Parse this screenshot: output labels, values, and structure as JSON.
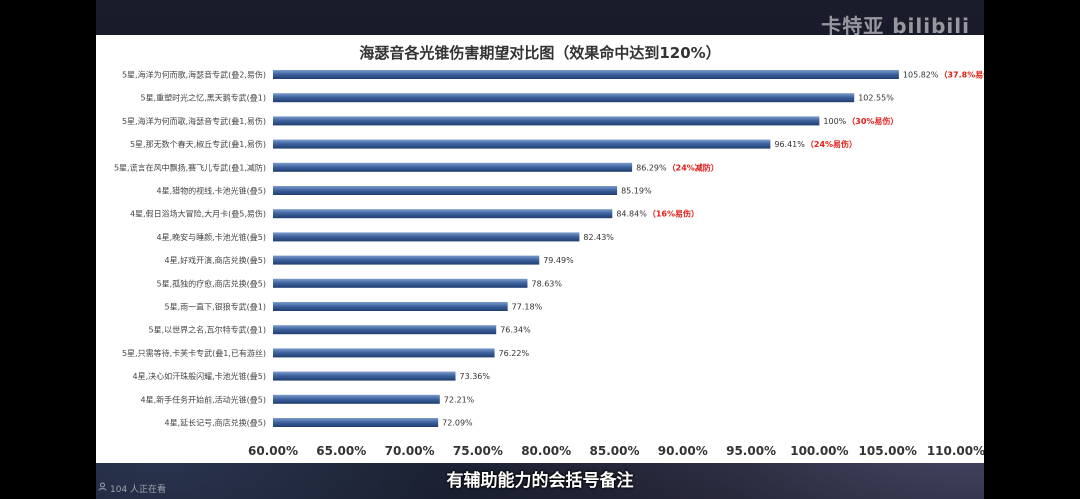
{
  "watermark": "卡特亚 bilibili",
  "subtitle": "有辅助能力的会括号备注",
  "viewers": "104 人正在看",
  "colors": {
    "bar_dark": "#1f3d70",
    "bar_light": "#6a8cc0",
    "note": "#e0201a"
  },
  "chart_data": {
    "type": "bar",
    "orientation": "horizontal",
    "title": "海瑟音各光锥伤害期望对比图（效果命中达到120%）",
    "xlabel": "",
    "ylabel": "",
    "xlim": [
      0.6,
      1.1
    ],
    "grid": false,
    "legend": "none",
    "x_ticks": [
      "60.00%",
      "65.00%",
      "70.00%",
      "75.00%",
      "80.00%",
      "85.00%",
      "90.00%",
      "95.00%",
      "100.00%",
      "105.00%",
      "110.00%"
    ],
    "categories": [
      "5星,海洋为何而歌,海瑟音专武(叠2,易伤)",
      "5星,重塑时光之忆,黑天鹅专武(叠1)",
      "5星,海洋为何而歌,海瑟音专武(叠1,易伤)",
      "5星,那无数个春天,椒丘专武(叠1,易伤)",
      "5星,谎言在风中飘扬,赛飞儿专武(叠1,减防)",
      "4星,猎物的视线,卡池光锥(叠5)",
      "4星,假日浴场大冒险,大月卡(叠5,易伤)",
      "4星,晚安与睡颜,卡池光锥(叠5)",
      "4星,好戏开演,商店兑换(叠5)",
      "5星,孤独的疗愈,商店兑换(叠5)",
      "5星,雨一直下,银狼专武(叠1)",
      "5星,以世界之名,瓦尔特专武(叠1)",
      "5星,只需等待,卡芙卡专武(叠1,已有游丝)",
      "4星,决心如汗珠般闪耀,卡池光锥(叠5)",
      "4星,新手任务开始前,活动光锥(叠5)",
      "4星,延长记号,商店兑换(叠5)"
    ],
    "values": [
      1.0582,
      1.0255,
      1.0,
      0.9641,
      0.8629,
      0.8519,
      0.8484,
      0.8243,
      0.7949,
      0.7863,
      0.7718,
      0.7634,
      0.7622,
      0.7336,
      0.7221,
      0.7209
    ],
    "value_labels": [
      "105.82%",
      "102.55%",
      "100%",
      "96.41%",
      "86.29%",
      "85.19%",
      "84.84%",
      "82.43%",
      "79.49%",
      "78.63%",
      "77.18%",
      "76.34%",
      "76.22%",
      "73.36%",
      "72.21%",
      "72.09%"
    ],
    "notes": [
      "（37.8%易伤）",
      "",
      "（30%易伤）",
      "（24%易伤）",
      "（24%减防）",
      "",
      "（16%易伤）",
      "",
      "",
      "",
      "",
      "",
      "",
      "",
      "",
      ""
    ]
  }
}
